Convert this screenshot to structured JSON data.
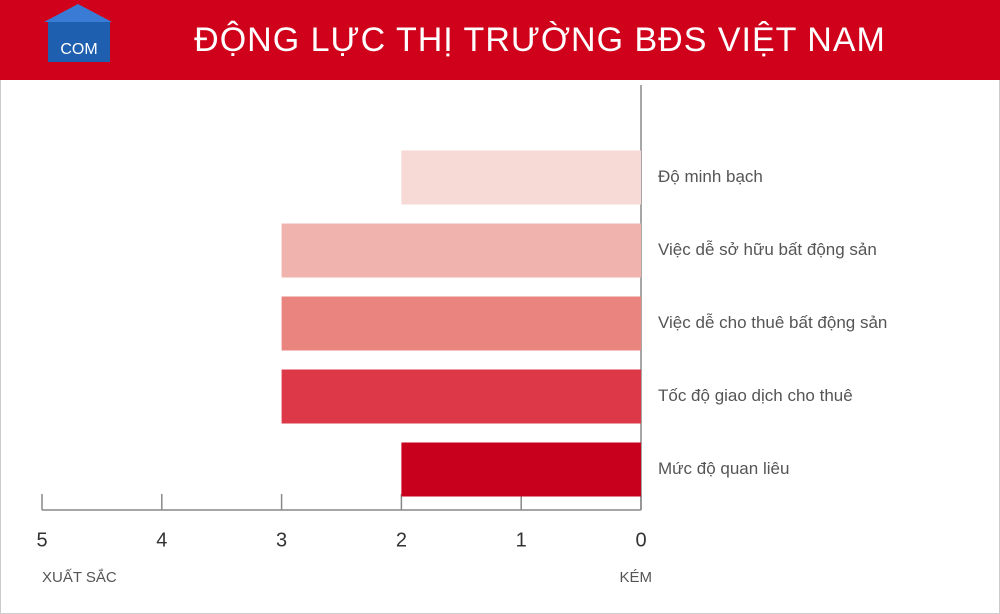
{
  "chart_data": {
    "type": "barh",
    "title": "ĐỘNG LỰC THỊ TRƯỜNG BĐS VIỆT NAM",
    "logo_text": "COM",
    "categories": [
      "Độ minh bạch",
      "Việc dễ sở hữu bất động sản",
      "Việc dễ cho thuê bất động sản",
      "Tốc độ giao dịch cho thuê",
      "Mức độ quan liêu"
    ],
    "values": [
      2,
      3,
      3,
      3,
      2
    ],
    "colors": [
      "#f7d9d6",
      "#f0b3ae",
      "#e9847f",
      "#dc3848",
      "#c8001e"
    ],
    "xlim": [
      5,
      0
    ],
    "xticks": [
      5,
      4,
      3,
      2,
      1,
      0
    ],
    "x_label_left": "XUẤT SẮC",
    "x_label_right": "KÉM"
  }
}
